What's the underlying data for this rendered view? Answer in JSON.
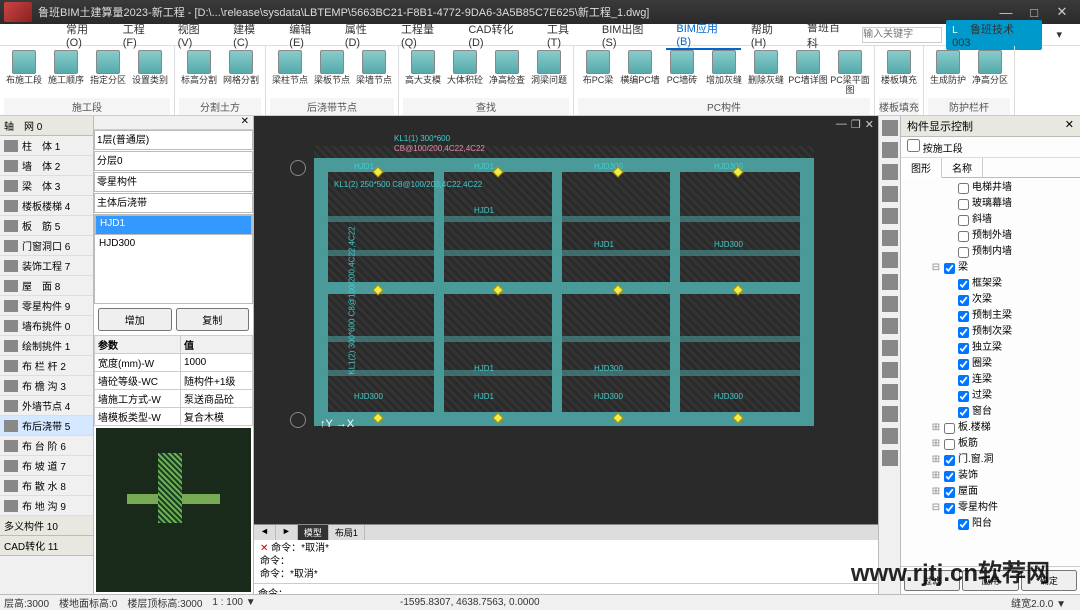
{
  "title": "鲁班BIM土建算量2023-新工程 - [D:\\...\\release\\sysdata\\LBTEMP\\5663BC21-F8B1-4772-9DA6-3A5B85C7E625\\新工程_1.dwg]",
  "menus": [
    "常用(O)",
    "工程(F)",
    "视图(V)",
    "建模(C)",
    "编辑(E)",
    "属性(D)",
    "工程量(Q)",
    "CAD转化(D)",
    "工具(T)",
    "BIM出图(S)",
    "BIM应用(B)",
    "帮助(H)"
  ],
  "activeMenu": 10,
  "searchLabel": "鲁班百科",
  "searchPh": "输入关键字",
  "user": "鲁班技术003",
  "ribbonGroups": [
    {
      "label": "施工段",
      "items": [
        "布施工段",
        "施工顺序",
        "指定分区",
        "设置类别"
      ]
    },
    {
      "label": "分割土方",
      "items": [
        "标高分割",
        "网格分割"
      ]
    },
    {
      "label": "后浇带节点",
      "items": [
        "梁柱节点",
        "梁板节点",
        "梁墙节点"
      ]
    },
    {
      "label": "查找",
      "items": [
        "高大支模",
        "大体积砼",
        "净高检查",
        "洞梁问题"
      ]
    },
    {
      "label": "PC构件",
      "items": [
        "布PC梁",
        "横编PC墙",
        "PC墙砖",
        "增加灰缝",
        "删除灰缝",
        "PC墙详图",
        "PC梁平面图"
      ]
    },
    {
      "label": "楼板填充",
      "items": [
        "楼板填充"
      ]
    },
    {
      "label": "防护栏杆",
      "items": [
        "生成防护",
        "净高分区"
      ]
    }
  ],
  "leftHdr1": "轴　网  0",
  "leftItems1": [
    {
      "t": "柱　体  1"
    },
    {
      "t": "墙　体  2"
    },
    {
      "t": "梁　体  3"
    },
    {
      "t": "楼板楼梯  4"
    },
    {
      "t": "板　筋  5"
    },
    {
      "t": "门窗洞口  6"
    },
    {
      "t": "装饰工程  7"
    },
    {
      "t": "屋　面  8"
    },
    {
      "t": "零星构件  9"
    }
  ],
  "leftItems2": [
    {
      "t": "墙布挑件  0"
    },
    {
      "t": "绘制挑件  1"
    },
    {
      "t": "布 栏 杆  2"
    },
    {
      "t": "布 檐 沟  3"
    },
    {
      "t": "外墙节点  4"
    },
    {
      "t": "布后浇带  5",
      "sel": true
    },
    {
      "t": "布 台 阶  6"
    },
    {
      "t": "布 坡 道  7"
    },
    {
      "t": "布 散 水  8"
    },
    {
      "t": "布 地 沟  9"
    }
  ],
  "leftBtm": [
    "多义构件  10",
    "CAD转化  11"
  ],
  "mid": {
    "dropdowns": [
      "1层(普通层)",
      "分层0",
      "零星构件",
      "主体后浇带"
    ],
    "listSel": "HJD1",
    "listItems": [
      "HJD1",
      "HJD300"
    ],
    "btnAdd": "增加",
    "btnCopy": "复制",
    "paramHdr": [
      "参数",
      "值"
    ],
    "params": [
      [
        "宽度(mm)-W",
        "1000"
      ],
      [
        "墙砼等级-WC",
        "随构件+1级"
      ],
      [
        "墙施工方式-W",
        "泵送商品砼"
      ],
      [
        "墙模板类型-W",
        "复合木模"
      ]
    ]
  },
  "canvas": {
    "topLabel": "KL1(1)  300*600",
    "topLabel2": "CB@100/200,4C22,4C22",
    "bm": [
      "HJD1",
      "HJD1",
      "HJD300",
      "HJD300"
    ],
    "beamLabel": "KL1(2)  250*500  C8@100/200,4C22,4C22",
    "sideLabel": "KL1(2) 300*600 C8@100/200,4C22,4C22"
  },
  "cmd": {
    "tabs": [
      "◄",
      "►",
      "模型",
      "布局1"
    ],
    "lines": [
      "命令：*取消*",
      "命令：",
      "命令：*取消*"
    ],
    "prompt": "命令："
  },
  "rp": {
    "title": "构件显示控制",
    "chk": "按施工段",
    "tabs": [
      "图形",
      "名称"
    ],
    "tree": [
      {
        "p": 40,
        "c": false,
        "t": "电梯井墙"
      },
      {
        "p": 40,
        "c": false,
        "t": "玻璃幕墙"
      },
      {
        "p": 40,
        "c": false,
        "t": "斜墙"
      },
      {
        "p": 40,
        "c": false,
        "t": "预制外墙"
      },
      {
        "p": 40,
        "c": false,
        "t": "预制内墙"
      },
      {
        "p": 26,
        "c": true,
        "t": "梁",
        "exp": "−"
      },
      {
        "p": 40,
        "c": true,
        "t": "框架梁"
      },
      {
        "p": 40,
        "c": true,
        "t": "次梁"
      },
      {
        "p": 40,
        "c": true,
        "t": "预制主梁"
      },
      {
        "p": 40,
        "c": true,
        "t": "预制次梁"
      },
      {
        "p": 40,
        "c": true,
        "t": "独立梁"
      },
      {
        "p": 40,
        "c": true,
        "t": "圈梁"
      },
      {
        "p": 40,
        "c": true,
        "t": "连梁"
      },
      {
        "p": 40,
        "c": true,
        "t": "过梁"
      },
      {
        "p": 40,
        "c": true,
        "t": "窗台"
      },
      {
        "p": 26,
        "c": false,
        "t": "板.楼梯",
        "exp": "+"
      },
      {
        "p": 26,
        "c": false,
        "t": "板筋",
        "exp": "+"
      },
      {
        "p": 26,
        "c": true,
        "t": "门.窗.洞",
        "exp": "+"
      },
      {
        "p": 26,
        "c": true,
        "t": "装饰",
        "exp": "+"
      },
      {
        "p": 26,
        "c": true,
        "t": "屋面",
        "exp": "+"
      },
      {
        "p": 26,
        "c": true,
        "t": "零星构件",
        "exp": "−"
      },
      {
        "p": 40,
        "c": true,
        "t": "阳台"
      }
    ],
    "btns": [
      "过滤",
      "应用",
      "确定"
    ]
  },
  "status": {
    "l1": "层高:3000",
    "l2": "楼地面标高:0",
    "l3": "楼层顶标高:3000",
    "l4": "1 : 100 ▼",
    "coords": "-1595.8307, 4638.7563, 0.0000",
    "r": "缝宽2.0.0 ▼"
  },
  "watermark": "www.rjtj.cn软荐网"
}
